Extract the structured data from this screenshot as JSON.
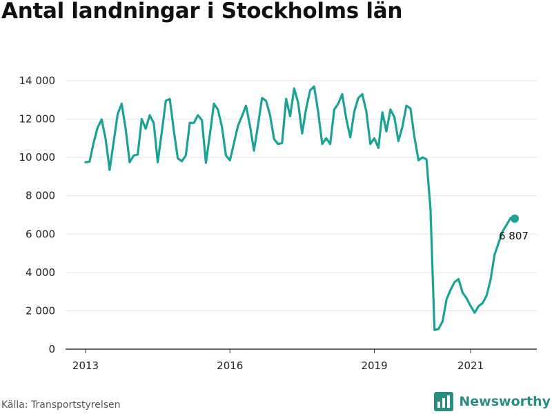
{
  "title": "Antal landningar i Stockholms län",
  "source": "Källa: Transportstyrelsen",
  "brand": {
    "name": "Newsworthy",
    "icon": "newsworthy-logo-icon"
  },
  "colors": {
    "line": "#1aa394",
    "axis": "#333333",
    "grid": "#e3e3e3",
    "brand": "#2a8d7f"
  },
  "chart_data": {
    "type": "line",
    "title": "Antal landningar i Stockholms län",
    "xlabel": "",
    "ylabel": "",
    "ylim": [
      0,
      14000
    ],
    "yticks": [
      {
        "value": 0,
        "label": "0"
      },
      {
        "value": 2000,
        "label": "2 000"
      },
      {
        "value": 4000,
        "label": "4 000"
      },
      {
        "value": 6000,
        "label": "6 000"
      },
      {
        "value": 8000,
        "label": "8 000"
      },
      {
        "value": 10000,
        "label": "10 000"
      },
      {
        "value": 12000,
        "label": "12 000"
      },
      {
        "value": 14000,
        "label": "14 000"
      }
    ],
    "xticks": [
      "2013",
      "2016",
      "2019",
      "2021"
    ],
    "grid": true,
    "series": [
      {
        "x": [
          "2013-01",
          "2013-02",
          "2013-03",
          "2013-04",
          "2013-05",
          "2013-06",
          "2013-07",
          "2013-08",
          "2013-09",
          "2013-10",
          "2013-11",
          "2013-12",
          "2014-01",
          "2014-02",
          "2014-03",
          "2014-04",
          "2014-05",
          "2014-06",
          "2014-07",
          "2014-08",
          "2014-09",
          "2014-10",
          "2014-11",
          "2014-12",
          "2015-01",
          "2015-02",
          "2015-03",
          "2015-04",
          "2015-05",
          "2015-06",
          "2015-07",
          "2015-08",
          "2015-09",
          "2015-10",
          "2015-11",
          "2015-12",
          "2016-01",
          "2016-02",
          "2016-03",
          "2016-04",
          "2016-05",
          "2016-06",
          "2016-07",
          "2016-08",
          "2016-09",
          "2016-10",
          "2016-11",
          "2016-12",
          "2017-01",
          "2017-02",
          "2017-03",
          "2017-04",
          "2017-05",
          "2017-06",
          "2017-07",
          "2017-08",
          "2017-09",
          "2017-10",
          "2017-11",
          "2017-12",
          "2018-01",
          "2018-02",
          "2018-03",
          "2018-04",
          "2018-05",
          "2018-06",
          "2018-07",
          "2018-08",
          "2018-09",
          "2018-10",
          "2018-11",
          "2018-12",
          "2019-01",
          "2019-02",
          "2019-03",
          "2019-04",
          "2019-05",
          "2019-06",
          "2019-07",
          "2019-08",
          "2019-09",
          "2019-10",
          "2019-11",
          "2019-12",
          "2020-01",
          "2020-02",
          "2020-03",
          "2020-04",
          "2020-05",
          "2020-06",
          "2020-07",
          "2020-08",
          "2020-09",
          "2020-10",
          "2020-11",
          "2020-12",
          "2021-01",
          "2021-02",
          "2021-03",
          "2021-04",
          "2021-05",
          "2021-06",
          "2021-07",
          "2021-08",
          "2021-09",
          "2021-10",
          "2021-11",
          "2021-12"
        ],
        "values": [
          9750,
          9780,
          10750,
          11550,
          11980,
          10950,
          9350,
          10800,
          12250,
          12800,
          11500,
          9750,
          10100,
          10150,
          12000,
          11500,
          12200,
          11800,
          9750,
          11300,
          12950,
          13050,
          11400,
          9950,
          9800,
          10100,
          11800,
          11800,
          12200,
          11950,
          9720,
          11200,
          12800,
          12500,
          11600,
          10100,
          9850,
          10750,
          11650,
          12150,
          12700,
          11650,
          10350,
          11700,
          13100,
          12950,
          12200,
          10950,
          10700,
          10750,
          13050,
          12150,
          13600,
          12850,
          11250,
          12550,
          13500,
          13700,
          12350,
          10700,
          11000,
          10700,
          12500,
          12800,
          13300,
          12000,
          11050,
          12400,
          13100,
          13300,
          12400,
          10700,
          11000,
          10500,
          12350,
          11350,
          12500,
          12100,
          10850,
          11600,
          12700,
          12550,
          11050,
          9850,
          10000,
          9900,
          7300,
          1000,
          1050,
          1450,
          2600,
          3100,
          3500,
          3650,
          2950,
          2650,
          2250,
          1900,
          2250,
          2400,
          2800,
          3650,
          4950,
          5550,
          6150,
          6500,
          6850,
          6807
        ],
        "end_label": "6 807"
      }
    ]
  }
}
